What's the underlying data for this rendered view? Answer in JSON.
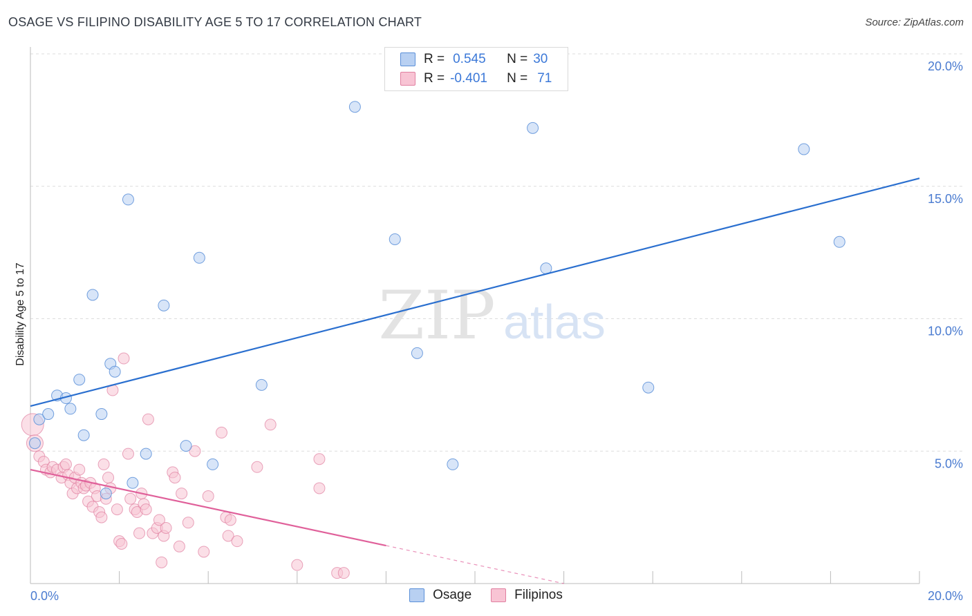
{
  "title": "OSAGE VS FILIPINO DISABILITY AGE 5 TO 17 CORRELATION CHART",
  "source": "Source: ZipAtlas.com",
  "watermark": {
    "zip": "ZIP",
    "atlas": "atlas"
  },
  "legend": {
    "rows": [
      {
        "r_label": "R =",
        "r_value": "0.545",
        "n_label": "N =",
        "n_value": "30"
      },
      {
        "r_label": "R =",
        "r_value": "-0.401",
        "n_label": "N =",
        "n_value": "71"
      }
    ]
  },
  "bottom_legend": [
    "Osage",
    "Filipinos"
  ],
  "colors": {
    "osage_fill": "#b8d0f2",
    "osage_stroke": "#5a8fd8",
    "osage_line": "#2a6fcf",
    "filipino_fill": "#f8c4d4",
    "filipino_stroke": "#e07fa0",
    "filipino_line": "#e0609a",
    "tick": "#4a7bd0",
    "grid": "#dcdcdc"
  },
  "chart_data": {
    "type": "scatter",
    "title": "OSAGE VS FILIPINO DISABILITY AGE 5 TO 17 CORRELATION CHART",
    "xlabel": "",
    "ylabel": "Disability Age 5 to 17",
    "xlim": [
      0,
      20
    ],
    "ylim": [
      0,
      20
    ],
    "x_tick_labels": [
      "0.0%",
      "20.0%"
    ],
    "y_tick_labels": [
      "5.0%",
      "10.0%",
      "15.0%",
      "20.0%"
    ],
    "y_tick_values": [
      5,
      10,
      15,
      20
    ],
    "series": [
      {
        "name": "Osage",
        "r": 0.545,
        "n": 30,
        "trend": {
          "x": [
            0,
            20
          ],
          "y": [
            6.7,
            15.3
          ],
          "dashed_from": null
        },
        "points": [
          {
            "x": 0.2,
            "y": 6.2
          },
          {
            "x": 0.4,
            "y": 6.4
          },
          {
            "x": 0.6,
            "y": 7.1
          },
          {
            "x": 0.8,
            "y": 7.0
          },
          {
            "x": 0.9,
            "y": 6.6
          },
          {
            "x": 1.1,
            "y": 7.7
          },
          {
            "x": 1.2,
            "y": 5.6
          },
          {
            "x": 1.4,
            "y": 10.9
          },
          {
            "x": 1.6,
            "y": 6.4
          },
          {
            "x": 1.7,
            "y": 3.4
          },
          {
            "x": 1.8,
            "y": 8.3
          },
          {
            "x": 1.9,
            "y": 8.0
          },
          {
            "x": 2.2,
            "y": 14.5
          },
          {
            "x": 2.3,
            "y": 3.8
          },
          {
            "x": 2.6,
            "y": 4.9
          },
          {
            "x": 3.0,
            "y": 10.5
          },
          {
            "x": 3.5,
            "y": 5.2
          },
          {
            "x": 3.8,
            "y": 12.3
          },
          {
            "x": 4.1,
            "y": 4.5
          },
          {
            "x": 5.2,
            "y": 7.5
          },
          {
            "x": 7.3,
            "y": 18.0
          },
          {
            "x": 8.2,
            "y": 13.0
          },
          {
            "x": 8.7,
            "y": 8.7
          },
          {
            "x": 9.5,
            "y": 4.5
          },
          {
            "x": 11.3,
            "y": 17.2
          },
          {
            "x": 11.6,
            "y": 11.9
          },
          {
            "x": 13.9,
            "y": 7.4
          },
          {
            "x": 17.4,
            "y": 16.4
          },
          {
            "x": 18.2,
            "y": 12.9
          },
          {
            "x": 0.1,
            "y": 5.3
          }
        ]
      },
      {
        "name": "Filipinos",
        "r": -0.401,
        "n": 71,
        "trend": {
          "x": [
            0,
            12
          ],
          "y": [
            4.3,
            0.0
          ],
          "dashed_from": 8.0
        },
        "points": [
          {
            "x": 0.05,
            "y": 6.0
          },
          {
            "x": 0.1,
            "y": 5.3
          },
          {
            "x": 0.2,
            "y": 4.8
          },
          {
            "x": 0.3,
            "y": 4.6
          },
          {
            "x": 0.35,
            "y": 4.3
          },
          {
            "x": 0.45,
            "y": 4.2
          },
          {
            "x": 0.5,
            "y": 4.4
          },
          {
            "x": 0.6,
            "y": 4.3
          },
          {
            "x": 0.7,
            "y": 4.0
          },
          {
            "x": 0.75,
            "y": 4.4
          },
          {
            "x": 0.8,
            "y": 4.5
          },
          {
            "x": 0.85,
            "y": 4.1
          },
          {
            "x": 0.9,
            "y": 3.8
          },
          {
            "x": 0.95,
            "y": 3.4
          },
          {
            "x": 1.0,
            "y": 4.0
          },
          {
            "x": 1.05,
            "y": 3.6
          },
          {
            "x": 1.1,
            "y": 4.3
          },
          {
            "x": 1.15,
            "y": 3.8
          },
          {
            "x": 1.2,
            "y": 3.6
          },
          {
            "x": 1.25,
            "y": 3.7
          },
          {
            "x": 1.3,
            "y": 3.1
          },
          {
            "x": 1.35,
            "y": 3.8
          },
          {
            "x": 1.4,
            "y": 2.9
          },
          {
            "x": 1.45,
            "y": 3.6
          },
          {
            "x": 1.5,
            "y": 3.3
          },
          {
            "x": 1.55,
            "y": 2.7
          },
          {
            "x": 1.6,
            "y": 2.5
          },
          {
            "x": 1.65,
            "y": 4.5
          },
          {
            "x": 1.7,
            "y": 3.2
          },
          {
            "x": 1.75,
            "y": 4.0
          },
          {
            "x": 1.8,
            "y": 3.6
          },
          {
            "x": 1.85,
            "y": 7.3
          },
          {
            "x": 1.95,
            "y": 2.8
          },
          {
            "x": 2.0,
            "y": 1.6
          },
          {
            "x": 2.05,
            "y": 1.5
          },
          {
            "x": 2.1,
            "y": 8.5
          },
          {
            "x": 2.2,
            "y": 4.9
          },
          {
            "x": 2.25,
            "y": 3.2
          },
          {
            "x": 2.35,
            "y": 2.8
          },
          {
            "x": 2.4,
            "y": 2.7
          },
          {
            "x": 2.45,
            "y": 1.9
          },
          {
            "x": 2.5,
            "y": 3.4
          },
          {
            "x": 2.55,
            "y": 3.0
          },
          {
            "x": 2.6,
            "y": 2.8
          },
          {
            "x": 2.65,
            "y": 6.2
          },
          {
            "x": 2.75,
            "y": 1.9
          },
          {
            "x": 2.85,
            "y": 2.1
          },
          {
            "x": 2.9,
            "y": 2.4
          },
          {
            "x": 2.95,
            "y": 0.8
          },
          {
            "x": 3.0,
            "y": 1.8
          },
          {
            "x": 3.05,
            "y": 2.1
          },
          {
            "x": 3.2,
            "y": 4.2
          },
          {
            "x": 3.25,
            "y": 4.0
          },
          {
            "x": 3.35,
            "y": 1.4
          },
          {
            "x": 3.4,
            "y": 3.4
          },
          {
            "x": 3.55,
            "y": 2.3
          },
          {
            "x": 3.7,
            "y": 5.0
          },
          {
            "x": 3.9,
            "y": 1.2
          },
          {
            "x": 4.0,
            "y": 3.3
          },
          {
            "x": 4.3,
            "y": 5.7
          },
          {
            "x": 4.4,
            "y": 2.5
          },
          {
            "x": 4.5,
            "y": 2.4
          },
          {
            "x": 4.45,
            "y": 1.8
          },
          {
            "x": 4.65,
            "y": 1.6
          },
          {
            "x": 5.1,
            "y": 4.4
          },
          {
            "x": 5.4,
            "y": 6.0
          },
          {
            "x": 6.0,
            "y": 0.7
          },
          {
            "x": 6.5,
            "y": 4.7
          },
          {
            "x": 6.5,
            "y": 3.6
          },
          {
            "x": 6.9,
            "y": 0.4
          },
          {
            "x": 7.05,
            "y": 0.4
          }
        ]
      }
    ]
  }
}
